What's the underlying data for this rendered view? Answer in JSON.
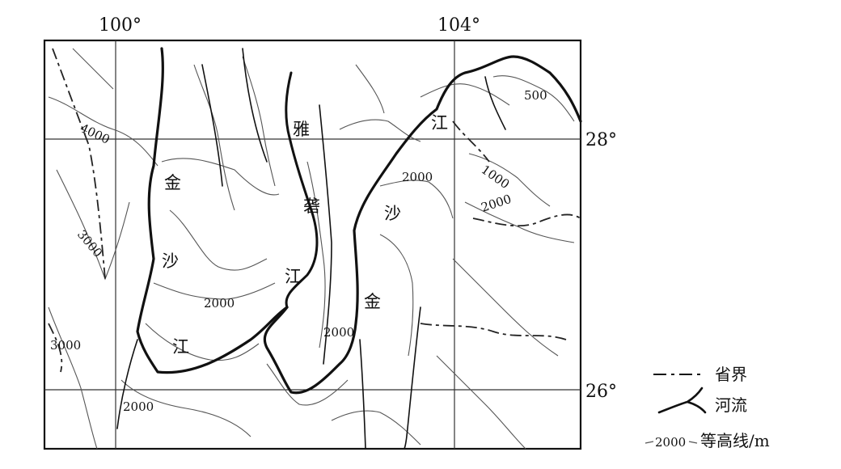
{
  "map": {
    "longitude_labels": [
      "100°",
      "104°"
    ],
    "latitude_labels": [
      "28°",
      "26°"
    ],
    "contour_labels": [
      "4000",
      "3000",
      "3000",
      "2000",
      "2000",
      "2000",
      "2000",
      "2000",
      "1000",
      "500"
    ],
    "river_labels": [
      "金",
      "沙",
      "江",
      "雅",
      "砻",
      "江",
      "金",
      "沙",
      "江"
    ]
  },
  "legend": {
    "items": [
      {
        "label": "省界",
        "symbol": "dashed-line"
      },
      {
        "label": "河流",
        "symbol": "river-fork"
      },
      {
        "label": "等高线/m",
        "symbol": "contour-line",
        "sample_value": "2000"
      }
    ]
  },
  "colors": {
    "ink": "#111111",
    "contour": "#555555",
    "background": "#ffffff"
  }
}
